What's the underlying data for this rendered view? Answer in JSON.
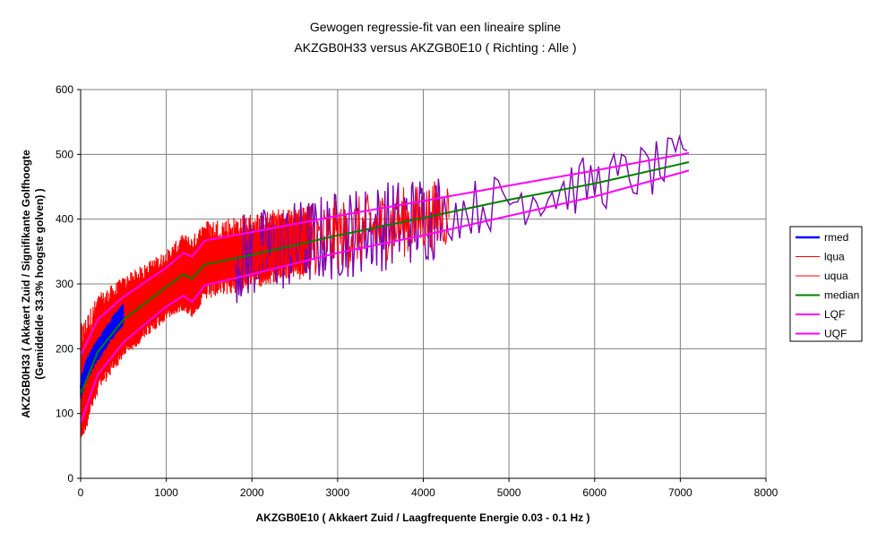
{
  "chart_data": {
    "type": "line",
    "title": "Gewogen regressie-fit van een lineaire spline",
    "subtitle": "AKZGB0H33 versus AKZGB0E10 ( Richting : Alle )",
    "xlabel": "AKZGB0E10 ( Akkaert Zuid / Laagfrequente Energie 0.03 - 0.1 Hz )",
    "ylabel_lines": [
      "AKZGB0H33 ( Akkaert Zuid / Signifikante Golfhoogte",
      "(Gemiddelde 33.3% hoogste golven) )"
    ],
    "xlim": [
      0,
      8000
    ],
    "ylim": [
      0,
      600
    ],
    "x_ticks": [
      "0",
      "1000",
      "2000",
      "3000",
      "4000",
      "5000",
      "6000",
      "7000",
      "8000"
    ],
    "y_ticks": [
      "0",
      "100",
      "200",
      "300",
      "400",
      "500",
      "600"
    ],
    "grid": true,
    "legend_position": "right",
    "series": [
      {
        "name": "rmed",
        "color": "#0000ff",
        "x": [
          0,
          40,
          80,
          120,
          160,
          200,
          250,
          300,
          350,
          400,
          450,
          500
        ],
        "y": [
          140,
          158,
          172,
          182,
          192,
          200,
          210,
          220,
          230,
          240,
          248,
          255
        ]
      },
      {
        "name": "lqua",
        "color": "#ff0000",
        "x": [
          0,
          500,
          1000,
          1200,
          1300,
          1450,
          2000,
          2700,
          3300,
          4000
        ],
        "y": [
          70,
          200,
          265,
          280,
          270,
          300,
          330,
          335,
          330,
          360
        ]
      },
      {
        "name": "uqua",
        "color": "#ff0000",
        "x": [
          0,
          500,
          1000,
          1200,
          1300,
          1450,
          2000,
          2700,
          3300,
          4000
        ],
        "y": [
          180,
          285,
          335,
          348,
          340,
          365,
          375,
          390,
          400,
          410
        ]
      },
      {
        "name": "median",
        "color": "#008000",
        "x": [
          0,
          200,
          500,
          1000,
          1200,
          1300,
          1450,
          2000,
          3000,
          4000,
          5000,
          6000,
          7100
        ],
        "y": [
          130,
          195,
          245,
          295,
          315,
          308,
          330,
          345,
          375,
          402,
          430,
          455,
          488
        ]
      },
      {
        "name": "LQF",
        "color": "#ff00ff",
        "x": [
          0,
          200,
          500,
          1000,
          1200,
          1300,
          1450,
          2000,
          3000,
          4000,
          5000,
          6000,
          7100
        ],
        "y": [
          85,
          160,
          210,
          265,
          282,
          272,
          298,
          315,
          348,
          375,
          405,
          435,
          475
        ]
      },
      {
        "name": "UQF",
        "color": "#ff00ff",
        "x": [
          0,
          200,
          500,
          1000,
          1200,
          1300,
          1450,
          2000,
          3000,
          4000,
          5000,
          6000,
          7100
        ],
        "y": [
          190,
          245,
          280,
          325,
          348,
          342,
          367,
          380,
          405,
          428,
          452,
          475,
          502
        ]
      }
    ]
  }
}
